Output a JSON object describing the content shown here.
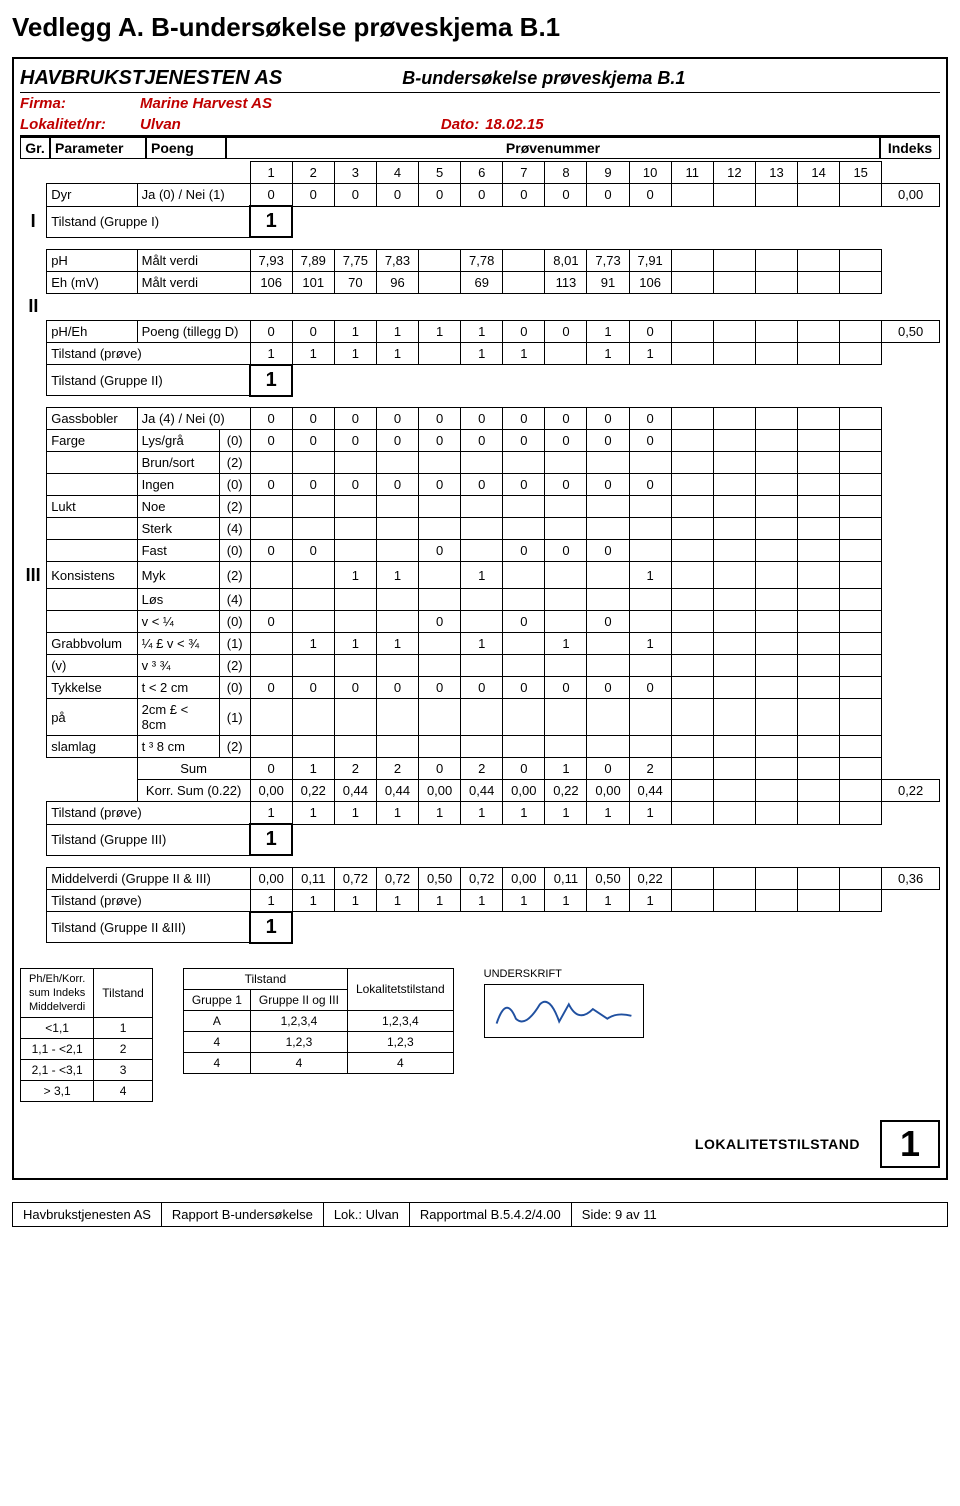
{
  "page_title": "Vedlegg A. B-undersøkelse prøveskjema B.1",
  "header": {
    "company": "HAVBRUKSTJENESTEN AS",
    "subtitle": "B-undersøkelse prøveskjema B.1",
    "firma_label": "Firma:",
    "firma_value": "Marine Harvest AS",
    "lokalitet_label": "Lokalitet/nr:",
    "lokalitet_value": "Ulvan",
    "dato_label": "Dato:",
    "dato_value": "18.02.15"
  },
  "param_header": {
    "gr": "Gr.",
    "parameter": "Parameter",
    "poeng": "Poeng",
    "provenummer": "Prøvenummer",
    "indeks": "Indeks",
    "cols": [
      "1",
      "2",
      "3",
      "4",
      "5",
      "6",
      "7",
      "8",
      "9",
      "10",
      "11",
      "12",
      "13",
      "14",
      "15"
    ]
  },
  "group1": {
    "label": "I",
    "dyr": {
      "param": "Dyr",
      "sub": "Ja (0) / Nei (1)",
      "vals": [
        "0",
        "0",
        "0",
        "0",
        "0",
        "0",
        "0",
        "0",
        "0",
        "0",
        "",
        "",
        "",
        "",
        ""
      ],
      "idx": "0,00"
    },
    "tilstand_label": "Tilstand (Gruppe I)",
    "tilstand_val": "1"
  },
  "group2": {
    "label": "II",
    "ph": {
      "param": "pH",
      "sub": "Målt verdi",
      "vals": [
        "7,93",
        "7,89",
        "7,75",
        "7,83",
        "",
        "7,78",
        "",
        "8,01",
        "7,73",
        "7,91",
        "",
        "",
        "",
        "",
        ""
      ]
    },
    "eh": {
      "param": "Eh (mV)",
      "sub": "Målt verdi",
      "vals": [
        "106",
        "101",
        "70",
        "96",
        "",
        "69",
        "",
        "113",
        "91",
        "106",
        "",
        "",
        "",
        "",
        ""
      ]
    },
    "pheh": {
      "param": "pH/Eh",
      "sub": "Poeng (tillegg D)",
      "vals": [
        "0",
        "0",
        "1",
        "1",
        "1",
        "1",
        "0",
        "0",
        "1",
        "0",
        "",
        "",
        "",
        "",
        ""
      ],
      "idx": "0,50"
    },
    "tilstand_prove_label": "Tilstand (prøve)",
    "tilstand_prove_vals": [
      "1",
      "1",
      "1",
      "1",
      "",
      "1",
      "1",
      "",
      "1",
      "1",
      "",
      "",
      "",
      "",
      ""
    ],
    "tilstand_gruppe_label": "Tilstand (Gruppe II)",
    "tilstand_gruppe_val": "1"
  },
  "group3": {
    "label": "III",
    "rows": [
      {
        "par": "Gassbobler",
        "sub": "Ja (4) / Nei (0)",
        "sc": "",
        "vals": [
          "0",
          "0",
          "0",
          "0",
          "0",
          "0",
          "0",
          "0",
          "0",
          "0",
          "",
          "",
          "",
          "",
          ""
        ]
      },
      {
        "par": "Farge",
        "sub": "Lys/grå",
        "sc": "(0)",
        "vals": [
          "0",
          "0",
          "0",
          "0",
          "0",
          "0",
          "0",
          "0",
          "0",
          "0",
          "",
          "",
          "",
          "",
          ""
        ]
      },
      {
        "par": "",
        "sub": "Brun/sort",
        "sc": "(2)",
        "vals": [
          "",
          "",
          "",
          "",
          "",
          "",
          "",
          "",
          "",
          "",
          "",
          "",
          "",
          "",
          ""
        ]
      },
      {
        "par": "",
        "sub": "Ingen",
        "sc": "(0)",
        "vals": [
          "0",
          "0",
          "0",
          "0",
          "0",
          "0",
          "0",
          "0",
          "0",
          "0",
          "",
          "",
          "",
          "",
          ""
        ]
      },
      {
        "par": "Lukt",
        "sub": "Noe",
        "sc": "(2)",
        "vals": [
          "",
          "",
          "",
          "",
          "",
          "",
          "",
          "",
          "",
          "",
          "",
          "",
          "",
          "",
          ""
        ]
      },
      {
        "par": "",
        "sub": "Sterk",
        "sc": "(4)",
        "vals": [
          "",
          "",
          "",
          "",
          "",
          "",
          "",
          "",
          "",
          "",
          "",
          "",
          "",
          "",
          ""
        ]
      },
      {
        "par": "",
        "sub": "Fast",
        "sc": "(0)",
        "vals": [
          "0",
          "0",
          "",
          "",
          "0",
          "",
          "0",
          "0",
          "0",
          "",
          "",
          "",
          "",
          "",
          ""
        ]
      },
      {
        "par": "Konsistens",
        "sub": "Myk",
        "sc": "(2)",
        "vals": [
          "",
          "",
          "1",
          "1",
          "",
          "1",
          "",
          "",
          "",
          "1",
          "",
          "",
          "",
          "",
          ""
        ]
      },
      {
        "par": "",
        "sub": "Løs",
        "sc": "(4)",
        "vals": [
          "",
          "",
          "",
          "",
          "",
          "",
          "",
          "",
          "",
          "",
          "",
          "",
          "",
          "",
          ""
        ]
      },
      {
        "par": "",
        "sub": "v < ¼",
        "sc": "(0)",
        "vals": [
          "0",
          "",
          "",
          "",
          "0",
          "",
          "0",
          "",
          "0",
          "",
          "",
          "",
          "",
          "",
          ""
        ]
      },
      {
        "par": "Grabbvolum",
        "sub": "¼ £ v < ¾",
        "sc": "(1)",
        "vals": [
          "",
          "1",
          "1",
          "1",
          "",
          "1",
          "",
          "1",
          "",
          "1",
          "",
          "",
          "",
          "",
          ""
        ]
      },
      {
        "par": "(v)",
        "sub": "v ³ ¾",
        "sc": "(2)",
        "vals": [
          "",
          "",
          "",
          "",
          "",
          "",
          "",
          "",
          "",
          "",
          "",
          "",
          "",
          "",
          ""
        ]
      },
      {
        "par": "Tykkelse",
        "sub": "t < 2 cm",
        "sc": "(0)",
        "vals": [
          "0",
          "0",
          "0",
          "0",
          "0",
          "0",
          "0",
          "0",
          "0",
          "0",
          "",
          "",
          "",
          "",
          ""
        ]
      },
      {
        "par": "på",
        "sub": "2cm £ < 8cm",
        "sc": "(1)",
        "vals": [
          "",
          "",
          "",
          "",
          "",
          "",
          "",
          "",
          "",
          "",
          "",
          "",
          "",
          "",
          ""
        ]
      },
      {
        "par": "slamlag",
        "sub": "t ³ 8 cm",
        "sc": "(2)",
        "vals": [
          "",
          "",
          "",
          "",
          "",
          "",
          "",
          "",
          "",
          "",
          "",
          "",
          "",
          "",
          ""
        ]
      }
    ],
    "sum_label": "Sum",
    "sum_vals": [
      "0",
      "1",
      "2",
      "2",
      "0",
      "2",
      "0",
      "1",
      "0",
      "2",
      "",
      "",
      "",
      "",
      ""
    ],
    "korr_label": "Korr. Sum (0.22)",
    "korr_vals": [
      "0,00",
      "0,22",
      "0,44",
      "0,44",
      "0,00",
      "0,44",
      "0,00",
      "0,22",
      "0,00",
      "0,44",
      "",
      "",
      "",
      "",
      ""
    ],
    "korr_idx": "0,22",
    "tilstand_prove_label": "Tilstand (prøve)",
    "tilstand_prove_vals": [
      "1",
      "1",
      "1",
      "1",
      "1",
      "1",
      "1",
      "1",
      "1",
      "1",
      "",
      "",
      "",
      "",
      ""
    ],
    "tilstand_gruppe_label": "Tilstand (Gruppe III)",
    "tilstand_gruppe_val": "1"
  },
  "middel": {
    "label": "Middelverdi (Gruppe II & III)",
    "vals": [
      "0,00",
      "0,11",
      "0,72",
      "0,72",
      "0,50",
      "0,72",
      "0,00",
      "0,11",
      "0,50",
      "0,22",
      "",
      "",
      "",
      "",
      ""
    ],
    "idx": "0,36",
    "tilstand_prove_label": "Tilstand (prøve)",
    "tilstand_prove_vals": [
      "1",
      "1",
      "1",
      "1",
      "1",
      "1",
      "1",
      "1",
      "1",
      "1",
      "",
      "",
      "",
      "",
      ""
    ],
    "tilstand_gruppe_label": "Tilstand (Gruppe II &III)",
    "tilstand_gruppe_val": "1"
  },
  "bottom_left": {
    "head1": "Ph/Eh/Korr.",
    "head2": "sum Indeks",
    "head3": "Middelverdi",
    "col2": "Tilstand",
    "rows": [
      {
        "a": "<1,1",
        "b": "1"
      },
      {
        "a": "1,1 - <2,1",
        "b": "2"
      },
      {
        "a": "2,1 - <3,1",
        "b": "3"
      },
      {
        "a": "> 3,1",
        "b": "4"
      }
    ]
  },
  "bottom_mid": {
    "tilstand": "Tilstand",
    "g1": "Gruppe 1",
    "g23": "Gruppe II og III",
    "lokal": "Lokalitetstilstand",
    "rows": [
      {
        "a": "A",
        "b": "1,2,3,4",
        "c": "1,2,3,4"
      },
      {
        "a": "4",
        "b": "1,2,3",
        "c": "1,2,3"
      },
      {
        "a": "4",
        "b": "4",
        "c": "4"
      }
    ]
  },
  "signature_label": "UNDERSKRIFT",
  "lokal_label": "LOKALITETSTILSTAND",
  "lokal_value": "1",
  "footer": {
    "a": "Havbrukstjenesten AS",
    "b": "Rapport B-undersøkelse",
    "c": "Lok.: Ulvan",
    "d": "Rapportmal B.5.4.2/4.00",
    "e": "Side:  9 av 11"
  },
  "colors": {
    "red": "#c00000",
    "border": "#000000",
    "bg": "#ffffff"
  }
}
